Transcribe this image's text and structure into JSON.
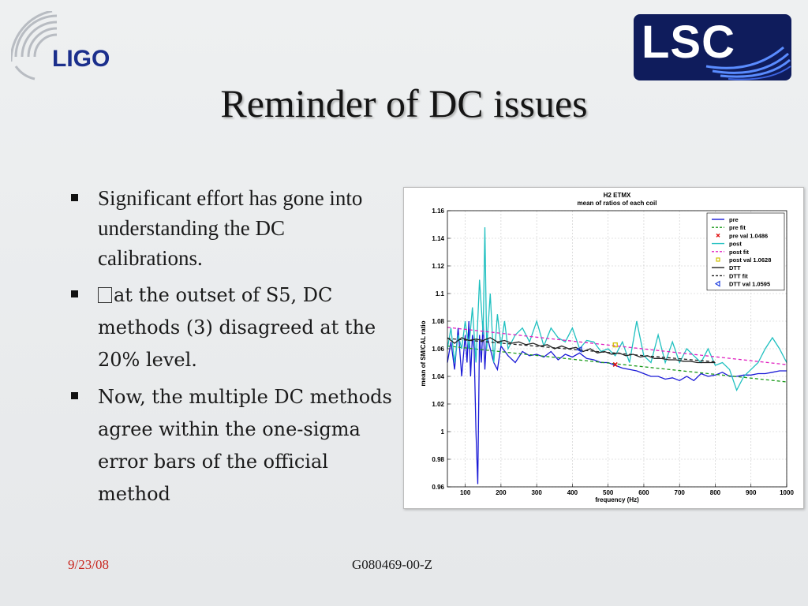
{
  "logos": {
    "left_text": "LIGO",
    "right_text": "LSC"
  },
  "title": "Reminder of DC issues",
  "bullets": [
    {
      "text": "Significant effort has gone into understanding the DC calibrations."
    },
    {
      "text": "at the outset of S5, DC methods (3) disagreed at the 20% level."
    },
    {
      "text": "Now, the multiple DC methods agree within the one-sigma error bars of the official method"
    }
  ],
  "footer": {
    "date": "9/23/08",
    "doc_id": "G080469-00-Z"
  },
  "colors": {
    "title": "#141414",
    "footer_date": "#c8261e",
    "ligo_blue": "#1b2f8c",
    "lsc_bg": "#0f1c5c"
  },
  "chart_data": {
    "type": "line",
    "title": "H2 ETMX",
    "subtitle": "mean of ratios of each coil",
    "xlabel": "frequency (Hz)",
    "ylabel": "mean of SM/CAL ratio",
    "xlim": [
      50,
      1000
    ],
    "ylim": [
      0.96,
      1.16
    ],
    "xticks": [
      100,
      200,
      300,
      400,
      500,
      600,
      700,
      800,
      900,
      1000
    ],
    "yticks": [
      0.96,
      0.98,
      1,
      1.02,
      1.04,
      1.06,
      1.08,
      1.1,
      1.12,
      1.14,
      1.16
    ],
    "ytick_labels": [
      "0.96",
      "0.98",
      "1",
      "1.02",
      "1.04",
      "1.06",
      "1.08",
      "1.1",
      "1.12",
      "1.14",
      "1.16"
    ],
    "grid": true,
    "legend_position": "top-right",
    "legend": [
      {
        "label": "pre",
        "color": "#1a1ad6",
        "style": "solid"
      },
      {
        "label": "pre fit",
        "color": "#1a9a1a",
        "style": "dashed"
      },
      {
        "label": "pre val 1.0486",
        "color": "#e01010",
        "style": "marker-x"
      },
      {
        "label": "post",
        "color": "#20c0c0",
        "style": "solid"
      },
      {
        "label": "post fit",
        "color": "#e020c0",
        "style": "dashed"
      },
      {
        "label": "post val 1.0628",
        "color": "#d0c000",
        "style": "marker-square"
      },
      {
        "label": "DTT",
        "color": "#222222",
        "style": "solid"
      },
      {
        "label": "DTT fit",
        "color": "#222222",
        "style": "dashed"
      },
      {
        "label": "DTT val 1.0595",
        "color": "#2040e0",
        "style": "marker-triangle"
      }
    ],
    "series": [
      {
        "name": "pre",
        "color": "#1a1ad6",
        "x": [
          50,
          60,
          70,
          80,
          90,
          100,
          105,
          110,
          115,
          120,
          125,
          130,
          135,
          140,
          145,
          150,
          155,
          160,
          170,
          180,
          190,
          200,
          220,
          240,
          260,
          280,
          300,
          320,
          340,
          360,
          380,
          400,
          420,
          440,
          460,
          480,
          500,
          520,
          540,
          560,
          580,
          600,
          620,
          640,
          660,
          680,
          700,
          720,
          740,
          760,
          780,
          800,
          820,
          840,
          860,
          880,
          900,
          920,
          940,
          960,
          980,
          1000
        ],
        "y": [
          1.05,
          1.065,
          1.045,
          1.075,
          1.04,
          1.07,
          1.05,
          1.08,
          1.04,
          1.07,
          1.06,
          1.0,
          0.962,
          1.07,
          1.05,
          1.08,
          1.045,
          1.07,
          1.06,
          1.05,
          1.045,
          1.062,
          1.055,
          1.05,
          1.058,
          1.055,
          1.056,
          1.054,
          1.058,
          1.052,
          1.056,
          1.054,
          1.057,
          1.053,
          1.052,
          1.05,
          1.05,
          1.048,
          1.046,
          1.045,
          1.044,
          1.042,
          1.04,
          1.04,
          1.038,
          1.039,
          1.037,
          1.04,
          1.037,
          1.042,
          1.04,
          1.041,
          1.043,
          1.04,
          1.04,
          1.041,
          1.041,
          1.042,
          1.042,
          1.043,
          1.044,
          1.044
        ]
      },
      {
        "name": "pre fit",
        "color": "#1a9a1a",
        "dashed": true,
        "x": [
          50,
          1000
        ],
        "y": [
          1.062,
          1.036
        ]
      },
      {
        "name": "post",
        "color": "#20c0c0",
        "x": [
          50,
          60,
          70,
          80,
          90,
          100,
          110,
          120,
          130,
          140,
          150,
          155,
          160,
          170,
          180,
          190,
          200,
          210,
          220,
          240,
          260,
          280,
          300,
          320,
          340,
          360,
          380,
          400,
          420,
          440,
          460,
          480,
          500,
          520,
          540,
          560,
          580,
          600,
          620,
          640,
          660,
          680,
          700,
          720,
          740,
          760,
          780,
          800,
          820,
          840,
          860,
          880,
          900,
          920,
          940,
          960,
          980,
          1000
        ],
        "y": [
          1.06,
          1.075,
          1.05,
          1.07,
          1.06,
          1.08,
          1.06,
          1.09,
          1.05,
          1.11,
          1.07,
          1.148,
          1.06,
          1.1,
          1.05,
          1.085,
          1.062,
          1.08,
          1.06,
          1.07,
          1.075,
          1.065,
          1.08,
          1.062,
          1.075,
          1.068,
          1.065,
          1.075,
          1.06,
          1.066,
          1.065,
          1.058,
          1.06,
          1.055,
          1.065,
          1.05,
          1.08,
          1.055,
          1.05,
          1.07,
          1.05,
          1.065,
          1.05,
          1.06,
          1.055,
          1.05,
          1.06,
          1.048,
          1.05,
          1.045,
          1.03,
          1.04,
          1.045,
          1.05,
          1.06,
          1.068,
          1.06,
          1.05
        ]
      },
      {
        "name": "post fit",
        "color": "#e020c0",
        "dashed": true,
        "x": [
          50,
          1000
        ],
        "y": [
          1.0755,
          1.0485
        ]
      },
      {
        "name": "DTT",
        "color": "#222222",
        "x": [
          50,
          70,
          90,
          110,
          130,
          150,
          170,
          190,
          210,
          230,
          250,
          270,
          290,
          310,
          330,
          350,
          370,
          390,
          410,
          430,
          450,
          470,
          490,
          510,
          530,
          550,
          570,
          590,
          610,
          630,
          650,
          670,
          690,
          710,
          730,
          750,
          770,
          790,
          800
        ],
        "y": [
          1.068,
          1.064,
          1.068,
          1.066,
          1.067,
          1.066,
          1.068,
          1.065,
          1.066,
          1.064,
          1.065,
          1.063,
          1.064,
          1.062,
          1.063,
          1.06,
          1.062,
          1.06,
          1.061,
          1.058,
          1.06,
          1.057,
          1.058,
          1.056,
          1.057,
          1.055,
          1.056,
          1.054,
          1.055,
          1.053,
          1.053,
          1.052,
          1.052,
          1.051,
          1.051,
          1.05,
          1.05,
          1.05,
          1.05
        ]
      },
      {
        "name": "DTT fit",
        "color": "#222222",
        "dashed": true,
        "x": [
          50,
          800
        ],
        "y": [
          1.0675,
          1.0505
        ]
      }
    ],
    "markers": [
      {
        "name": "pre val 1.0486",
        "x": 520,
        "y": 1.0486,
        "color": "#e01010",
        "shape": "x"
      },
      {
        "name": "post val 1.0628",
        "x": 520,
        "y": 1.0628,
        "color": "#d0c000",
        "shape": "square"
      },
      {
        "name": "DTT val 1.0595",
        "x": 420,
        "y": 1.0595,
        "color": "#2040e0",
        "shape": "triangle"
      }
    ]
  }
}
